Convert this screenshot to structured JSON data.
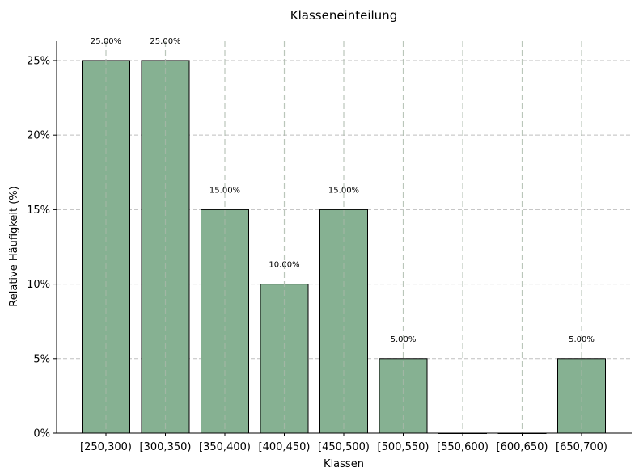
{
  "chart_data": {
    "type": "bar",
    "title": "Klasseneinteilung",
    "xlabel": "Klassen",
    "ylabel": "Relative Häufigkeit (%)",
    "categories": [
      "[250,300)",
      "[300,350)",
      "[350,400)",
      "[400,450)",
      "[450,500)",
      "[500,550)",
      "[550,600)",
      "[600,650)",
      "[650,700)"
    ],
    "values": [
      25,
      25,
      15,
      10,
      15,
      5,
      0,
      0,
      5
    ],
    "data_labels": [
      "25.00%",
      "25.00%",
      "15.00%",
      "10.00%",
      "15.00%",
      "5.00%",
      "",
      "",
      "5.00%"
    ],
    "yticks": [
      0,
      5,
      10,
      15,
      20,
      25
    ],
    "ytick_labels": [
      "0%",
      "5%",
      "10%",
      "15%",
      "20%",
      "25%"
    ],
    "ylim": [
      0,
      26.3
    ],
    "grid": "y-dashed",
    "bar_color": "#86b192",
    "bar_edge_color": "#000000"
  }
}
